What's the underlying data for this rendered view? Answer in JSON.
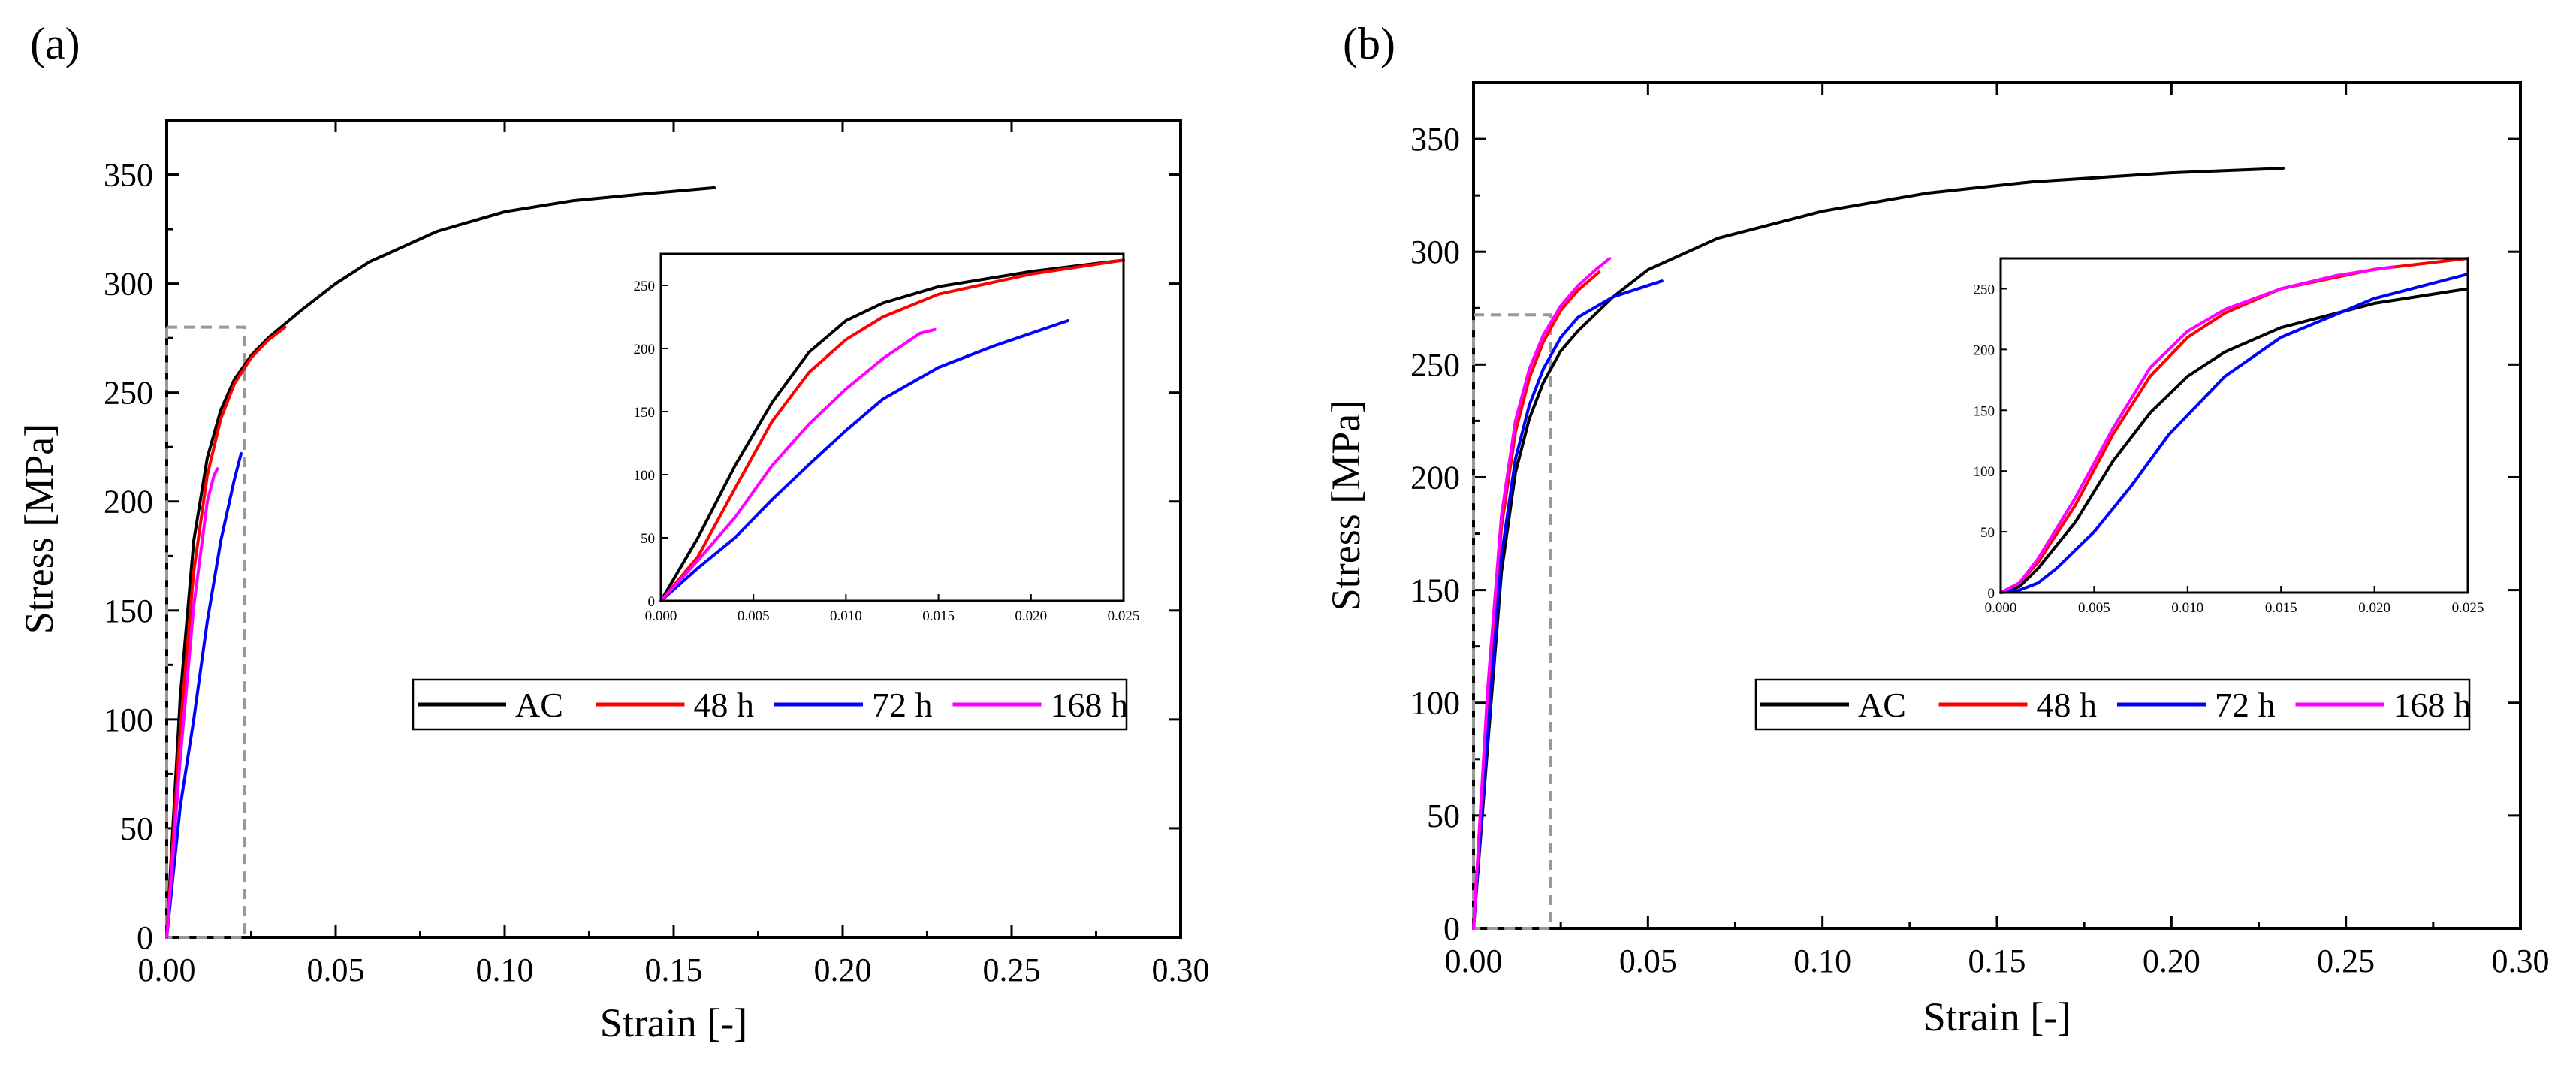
{
  "colors": {
    "AC": "#000000",
    "48 h": "#ff0000",
    "72 h": "#0000ff",
    "168 h": "#ff00ff",
    "zoom_box": "#999999"
  },
  "chart_data": [
    {
      "panel_label": "(a)",
      "type": "line",
      "xlabel": "Strain [-]",
      "ylabel": "Stress [MPa]",
      "xlim": [
        0,
        0.3
      ],
      "ylim": [
        0,
        375
      ],
      "xticks": [
        "0.00",
        "0.05",
        "0.10",
        "0.15",
        "0.20",
        "0.25",
        "0.30"
      ],
      "yticks": [
        "0",
        "50",
        "100",
        "150",
        "200",
        "250",
        "300",
        "350"
      ],
      "zoom_box": {
        "x": [
          0,
          0.023
        ],
        "y": [
          0,
          280
        ]
      },
      "legend": [
        "AC",
        "48 h",
        "72 h",
        "168 h"
      ],
      "series": [
        {
          "name": "AC",
          "x": [
            0,
            0.004,
            0.008,
            0.012,
            0.016,
            0.02,
            0.025,
            0.03,
            0.04,
            0.05,
            0.06,
            0.08,
            0.1,
            0.12,
            0.14,
            0.162
          ],
          "y": [
            0,
            110,
            182,
            220,
            242,
            256,
            267,
            275,
            288,
            300,
            310,
            324,
            333,
            338,
            341,
            344
          ]
        },
        {
          "name": "48 h",
          "x": [
            0,
            0.004,
            0.008,
            0.012,
            0.016,
            0.02,
            0.025,
            0.03,
            0.035
          ],
          "y": [
            0,
            95,
            168,
            212,
            238,
            254,
            266,
            274,
            280
          ]
        },
        {
          "name": "72 h",
          "x": [
            0,
            0.004,
            0.008,
            0.012,
            0.016,
            0.02,
            0.022
          ],
          "y": [
            0,
            60,
            100,
            145,
            182,
            210,
            222
          ]
        },
        {
          "name": "168 h",
          "x": [
            0,
            0.004,
            0.008,
            0.012,
            0.014,
            0.015
          ],
          "y": [
            0,
            82,
            152,
            200,
            212,
            215
          ]
        }
      ],
      "inset": {
        "xlim": [
          0,
          0.025
        ],
        "ylim": [
          0,
          275
        ],
        "xticks": [
          "0.000",
          "0.005",
          "0.010",
          "0.015",
          "0.020",
          "0.025"
        ],
        "yticks": [
          "0",
          "50",
          "100",
          "150",
          "200",
          "250"
        ],
        "series": [
          {
            "name": "AC",
            "x": [
              0,
              0.002,
              0.004,
              0.006,
              0.008,
              0.01,
              0.012,
              0.015,
              0.02,
              0.025
            ],
            "y": [
              0,
              50,
              107,
              157,
              197,
              222,
              236,
              249,
              261,
              270
            ]
          },
          {
            "name": "48 h",
            "x": [
              0,
              0.002,
              0.004,
              0.006,
              0.008,
              0.01,
              0.012,
              0.015,
              0.02,
              0.025
            ],
            "y": [
              0,
              35,
              89,
              142,
              181,
              207,
              225,
              243,
              259,
              270
            ]
          },
          {
            "name": "72 h",
            "x": [
              0,
              0.002,
              0.004,
              0.006,
              0.008,
              0.01,
              0.012,
              0.015,
              0.018,
              0.022
            ],
            "y": [
              0,
              26,
              50,
              80,
              108,
              135,
              160,
              185,
              202,
              222
            ]
          },
          {
            "name": "168 h",
            "x": [
              0,
              0.002,
              0.004,
              0.006,
              0.008,
              0.01,
              0.012,
              0.014,
              0.0148
            ],
            "y": [
              0,
              32,
              66,
              107,
              140,
              168,
              192,
              212,
              215
            ]
          }
        ]
      }
    },
    {
      "panel_label": "(b)",
      "type": "line",
      "xlabel": "Strain [-]",
      "ylabel": "Stress [MPa]",
      "xlim": [
        0,
        0.3
      ],
      "ylim": [
        0,
        375
      ],
      "xticks": [
        "0.00",
        "0.05",
        "0.10",
        "0.15",
        "0.20",
        "0.25",
        "0.30"
      ],
      "yticks": [
        "0",
        "50",
        "100",
        "150",
        "200",
        "250",
        "300",
        "350"
      ],
      "zoom_box": {
        "x": [
          0,
          0.022
        ],
        "y": [
          0,
          272
        ]
      },
      "legend": [
        "AC",
        "48 h",
        "72 h",
        "168 h"
      ],
      "series": [
        {
          "name": "AC",
          "x": [
            0,
            0.004,
            0.008,
            0.012,
            0.016,
            0.02,
            0.025,
            0.03,
            0.04,
            0.05,
            0.07,
            0.1,
            0.13,
            0.16,
            0.2,
            0.232
          ],
          "y": [
            0,
            80,
            158,
            202,
            226,
            242,
            256,
            265,
            280,
            292,
            306,
            318,
            326,
            331,
            335,
            337
          ]
        },
        {
          "name": "48 h",
          "x": [
            0,
            0.004,
            0.008,
            0.012,
            0.016,
            0.02,
            0.025,
            0.03,
            0.036
          ],
          "y": [
            0,
            102,
            178,
            220,
            244,
            260,
            274,
            283,
            291
          ]
        },
        {
          "name": "72 h",
          "x": [
            0,
            0.004,
            0.008,
            0.012,
            0.016,
            0.02,
            0.025,
            0.03,
            0.04,
            0.05,
            0.054
          ],
          "y": [
            0,
            85,
            165,
            208,
            232,
            248,
            262,
            271,
            280,
            285,
            287
          ]
        },
        {
          "name": "168 h",
          "x": [
            0,
            0.004,
            0.008,
            0.012,
            0.016,
            0.02,
            0.025,
            0.03,
            0.035,
            0.039
          ],
          "y": [
            0,
            105,
            183,
            225,
            248,
            263,
            276,
            285,
            292,
            297
          ]
        }
      ],
      "inset": {
        "xlim": [
          0,
          0.025
        ],
        "ylim": [
          0,
          275
        ],
        "xticks": [
          "0.000",
          "0.005",
          "0.010",
          "0.015",
          "0.020",
          "0.025"
        ],
        "yticks": [
          "0",
          "50",
          "100",
          "150",
          "200",
          "250"
        ],
        "series": [
          {
            "name": "AC",
            "x": [
              0,
              0.001,
              0.002,
              0.004,
              0.006,
              0.008,
              0.01,
              0.012,
              0.015,
              0.02,
              0.025
            ],
            "y": [
              0,
              5,
              20,
              58,
              108,
              148,
              178,
              198,
              218,
              238,
              250
            ]
          },
          {
            "name": "48 h",
            "x": [
              0,
              0.001,
              0.002,
              0.004,
              0.006,
              0.008,
              0.01,
              0.012,
              0.015,
              0.02,
              0.025
            ],
            "y": [
              0,
              8,
              25,
              72,
              130,
              178,
              210,
              230,
              250,
              266,
              275
            ]
          },
          {
            "name": "72 h",
            "x": [
              0,
              0.001,
              0.002,
              0.003,
              0.005,
              0.007,
              0.009,
              0.012,
              0.015,
              0.02,
              0.025
            ],
            "y": [
              0,
              2,
              8,
              20,
              50,
              88,
              130,
              178,
              210,
              242,
              262
            ]
          },
          {
            "name": "168 h",
            "x": [
              0,
              0.001,
              0.002,
              0.004,
              0.006,
              0.008,
              0.01,
              0.012,
              0.015,
              0.018,
              0.021
            ],
            "y": [
              0,
              8,
              28,
              78,
              135,
              185,
              215,
              233,
              250,
              261,
              268
            ]
          }
        ]
      }
    }
  ]
}
